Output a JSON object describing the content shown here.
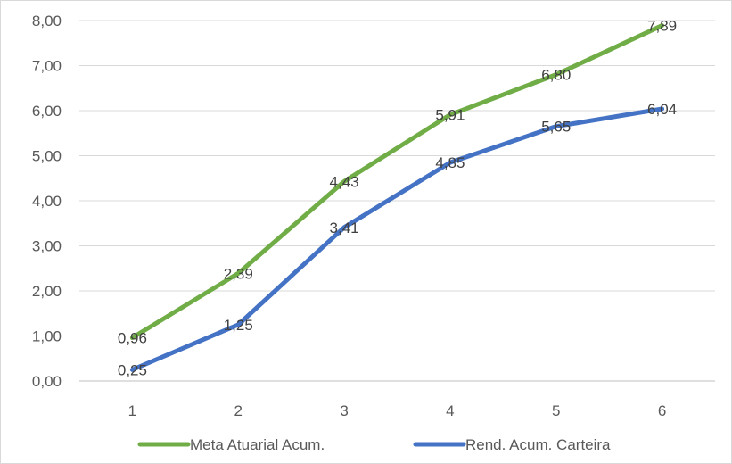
{
  "chart_data": {
    "type": "line",
    "title": "",
    "xlabel": "",
    "ylabel": "",
    "x": [
      1,
      2,
      3,
      4,
      5,
      6
    ],
    "x_tick_labels": [
      "1",
      "2",
      "3",
      "4",
      "5",
      "6"
    ],
    "ylim": [
      0,
      8
    ],
    "y_tick_labels": [
      "0,00",
      "1,00",
      "2,00",
      "3,00",
      "4,00",
      "5,00",
      "6,00",
      "7,00",
      "8,00"
    ],
    "grid": true,
    "legend_position": "bottom",
    "series": [
      {
        "name": "Meta Atuarial Acum.",
        "color": "#70ad47",
        "values": [
          0.96,
          2.39,
          4.43,
          5.91,
          6.8,
          7.89
        ],
        "labels": [
          "0,96",
          "2,39",
          "4,43",
          "5,91",
          "6,80",
          "7,89"
        ]
      },
      {
        "name": "Rend. Acum. Carteira",
        "color": "#4472c4",
        "values": [
          0.25,
          1.25,
          3.41,
          4.85,
          5.65,
          6.04
        ],
        "labels": [
          "0,25",
          "1,25",
          "3,41",
          "4,85",
          "5,65",
          "6,04"
        ]
      }
    ]
  }
}
